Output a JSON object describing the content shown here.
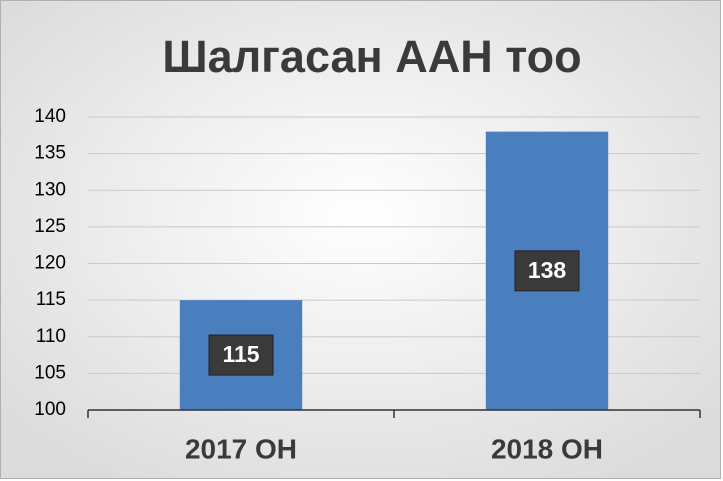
{
  "chart_data": {
    "type": "bar",
    "title": "Шалгасан ААН тоо",
    "categories": [
      "2017 ОН",
      "2018 ОН"
    ],
    "values": [
      115,
      138
    ],
    "color": "#4a7ebf",
    "ylim": [
      100,
      140
    ],
    "yticks": [
      100,
      105,
      110,
      115,
      120,
      125,
      130,
      135,
      140
    ],
    "grid": true
  }
}
